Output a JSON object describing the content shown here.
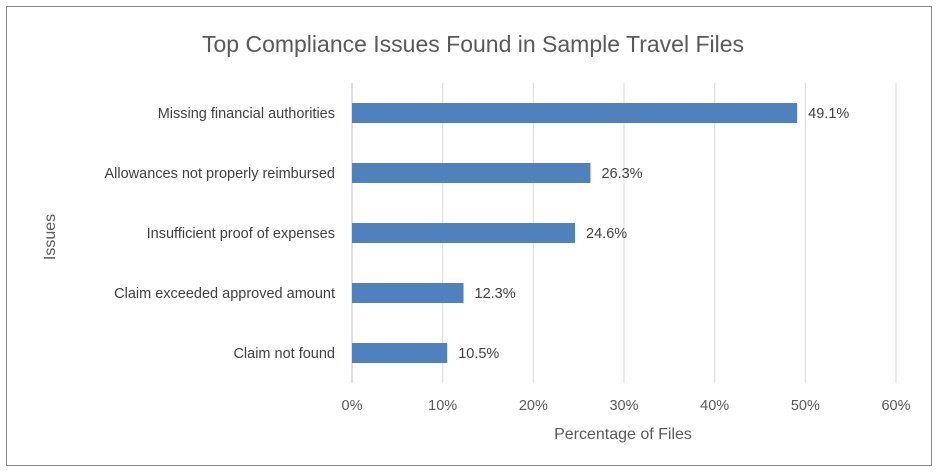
{
  "chart_data": {
    "type": "bar",
    "orientation": "horizontal",
    "title": "Top Compliance Issues Found in Sample Travel Files",
    "xlabel": "Percentage of Files",
    "ylabel": "Issues",
    "categories": [
      "Missing financial authorities",
      "Allowances not properly reimbursed",
      "Insufficient proof of expenses",
      "Claim exceeded approved amount",
      "Claim not found"
    ],
    "values": [
      49.1,
      26.3,
      24.6,
      12.3,
      10.5
    ],
    "data_labels": [
      "49.1%",
      "26.3%",
      "24.6%",
      "12.3%",
      "10.5%"
    ],
    "xlim": [
      0,
      60
    ],
    "x_ticks": [
      0,
      10,
      20,
      30,
      40,
      50,
      60
    ],
    "x_tick_labels": [
      "0%",
      "10%",
      "20%",
      "30%",
      "40%",
      "50%",
      "60%"
    ],
    "grid": "vertical",
    "legend": "none",
    "bar_color": "#4f81bd"
  }
}
